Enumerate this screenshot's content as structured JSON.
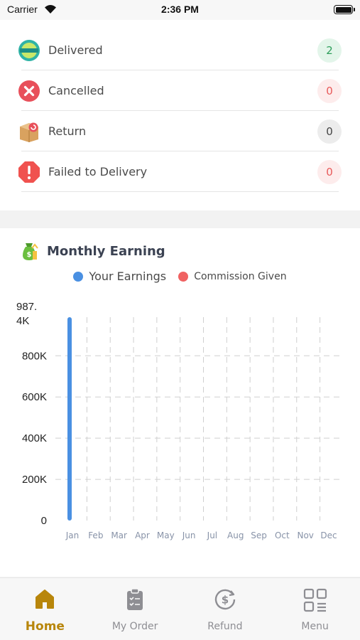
{
  "status_bar": {
    "carrier": "Carrier",
    "time": "2:36 PM"
  },
  "status_list": [
    {
      "label": "Delivered",
      "count": "2",
      "icon": "delivered-badge-icon",
      "badge_bg": "#e3f5ea",
      "badge_fg": "#2e9e5b"
    },
    {
      "label": "Cancelled",
      "count": "0",
      "icon": "cancelled-x-icon",
      "badge_bg": "#fdecec",
      "badge_fg": "#e85a5a"
    },
    {
      "label": "Return",
      "count": "0",
      "icon": "return-box-icon",
      "badge_bg": "#ececec",
      "badge_fg": "#444444"
    },
    {
      "label": "Failed to Delivery",
      "count": "0",
      "icon": "failed-alert-icon",
      "badge_bg": "#fdecec",
      "badge_fg": "#e85a5a"
    }
  ],
  "earning": {
    "title": "Monthly Earning",
    "legend": [
      {
        "label": "Your Earnings",
        "color": "#4a90e2"
      },
      {
        "label": "Commission Given",
        "color": "#f06262"
      }
    ]
  },
  "chart_data": {
    "type": "bar",
    "categories": [
      "Jan",
      "Feb",
      "Mar",
      "Apr",
      "May",
      "Jun",
      "Jul",
      "Aug",
      "Sep",
      "Oct",
      "Nov",
      "Dec"
    ],
    "series": [
      {
        "name": "Your Earnings",
        "color": "#4a90e2",
        "values": [
          987400,
          0,
          0,
          0,
          0,
          0,
          0,
          0,
          0,
          0,
          0,
          0
        ]
      },
      {
        "name": "Commission Given",
        "color": "#f06262",
        "values": [
          0,
          0,
          0,
          0,
          0,
          0,
          0,
          0,
          0,
          0,
          0,
          0
        ]
      }
    ],
    "yticks": [
      {
        "value": 0,
        "label": "0"
      },
      {
        "value": 200000,
        "label": "200K"
      },
      {
        "value": 400000,
        "label": "400K"
      },
      {
        "value": 600000,
        "label": "600K"
      },
      {
        "value": 800000,
        "label": "800K"
      },
      {
        "value": 987400,
        "label": "987.\n4K"
      }
    ],
    "ylim": [
      0,
      987400
    ],
    "grid": true,
    "legend": "top-center"
  },
  "bottom_nav": [
    {
      "label": "Home",
      "icon": "home-icon",
      "active": true
    },
    {
      "label": "My Order",
      "icon": "clipboard-icon",
      "active": false
    },
    {
      "label": "Refund",
      "icon": "refund-dollar-icon",
      "active": false
    },
    {
      "label": "Menu",
      "icon": "grid-menu-icon",
      "active": false
    }
  ],
  "colors": {
    "accent": "#b8860b",
    "inactive": "#8e8e93"
  }
}
